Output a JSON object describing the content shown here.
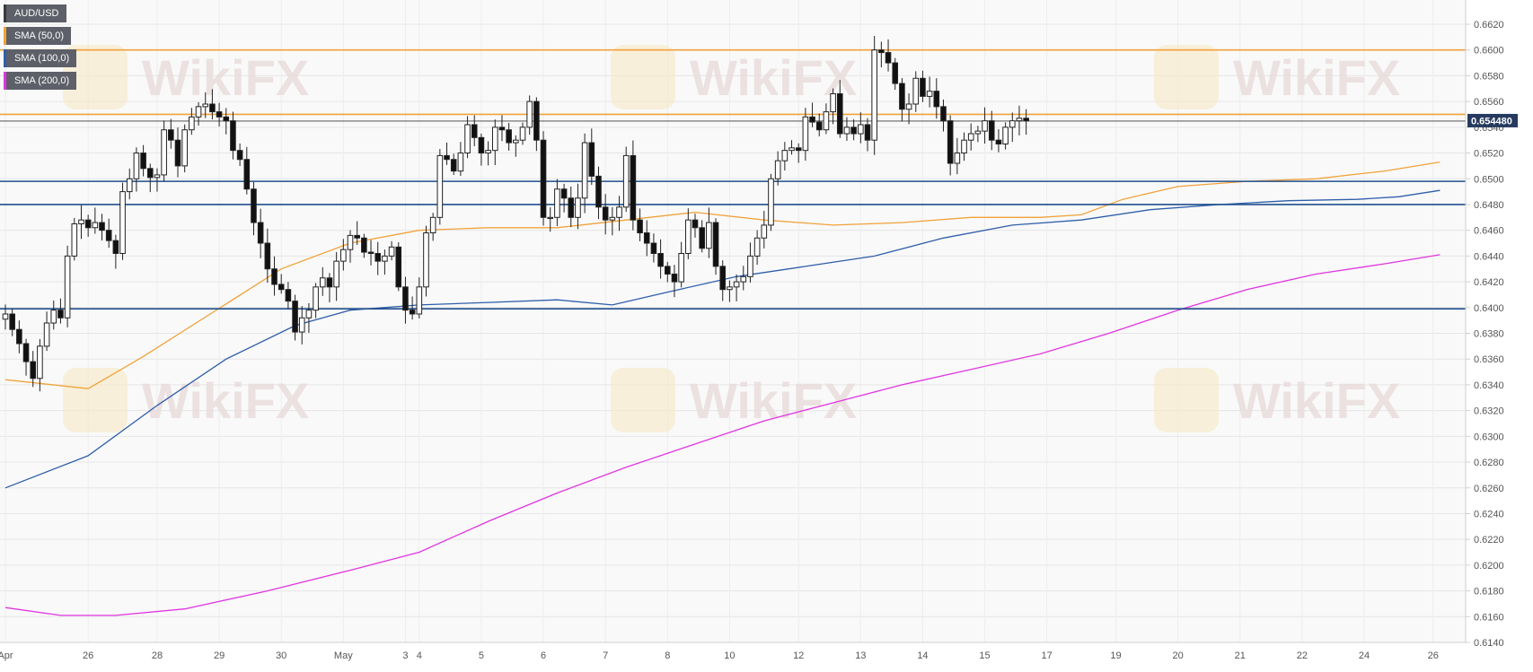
{
  "chart_data": {
    "type": "candlestick",
    "symbol": "AUD/USD",
    "price_badge": "0.654480",
    "ylim": [
      0.614,
      0.663
    ],
    "y_ticks": [
      "0.6140",
      "0.6160",
      "0.6180",
      "0.6200",
      "0.6220",
      "0.6240",
      "0.6260",
      "0.6280",
      "0.6300",
      "0.6320",
      "0.6340",
      "0.6360",
      "0.6380",
      "0.6400",
      "0.6420",
      "0.6440",
      "0.6460",
      "0.6480",
      "0.6500",
      "0.6520",
      "0.6540",
      "0.6560",
      "0.6580",
      "0.6600",
      "0.6620"
    ],
    "x_ticks": [
      {
        "label": "Apr",
        "bar": 0
      },
      {
        "label": "26",
        "bar": 12
      },
      {
        "label": "28",
        "bar": 22
      },
      {
        "label": "29",
        "bar": 31
      },
      {
        "label": "30",
        "bar": 40
      },
      {
        "label": "May",
        "bar": 49
      },
      {
        "label": "3",
        "bar": 58
      },
      {
        "label": "4",
        "bar": 60
      },
      {
        "label": "5",
        "bar": 69
      },
      {
        "label": "6",
        "bar": 78
      },
      {
        "label": "7",
        "bar": 87
      },
      {
        "label": "8",
        "bar": 96
      },
      {
        "label": "10",
        "bar": 105
      },
      {
        "label": "12",
        "bar": 115
      },
      {
        "label": "13",
        "bar": 124
      },
      {
        "label": "14",
        "bar": 133
      },
      {
        "label": "15",
        "bar": 142
      },
      {
        "label": "17",
        "bar": 151
      },
      {
        "label": "19",
        "bar": 161
      },
      {
        "label": "20",
        "bar": 170
      },
      {
        "label": "21",
        "bar": 179
      },
      {
        "label": "22",
        "bar": 188
      },
      {
        "label": "24",
        "bar": 197
      },
      {
        "label": "26",
        "bar": 207
      }
    ],
    "horizontal_levels": [
      {
        "value": 0.66,
        "color": "#f0a23a"
      },
      {
        "value": 0.655,
        "color": "#f0a23a"
      },
      {
        "value": 0.6498,
        "color": "#1f4e8c"
      },
      {
        "value": 0.648,
        "color": "#1f4e8c"
      },
      {
        "value": 0.6399,
        "color": "#1f4e8c"
      }
    ],
    "current_price_line": 0.65448,
    "series": [
      {
        "name": "AUD/USD",
        "ohlc_closes": [
          0.6395,
          0.6383,
          0.6372,
          0.6358,
          0.6345,
          0.637,
          0.6388,
          0.6398,
          0.6392,
          0.644,
          0.6465,
          0.6468,
          0.6462,
          0.6466,
          0.646,
          0.6452,
          0.6442,
          0.649,
          0.65,
          0.652,
          0.6508,
          0.6501,
          0.6503,
          0.6538,
          0.653,
          0.651,
          0.6538,
          0.6548,
          0.6556,
          0.6558,
          0.6552,
          0.6548,
          0.6545,
          0.6522,
          0.6515,
          0.6492,
          0.6466,
          0.645,
          0.643,
          0.6418,
          0.6414,
          0.6405,
          0.6381,
          0.6392,
          0.6398,
          0.6416,
          0.6423,
          0.6416,
          0.6436,
          0.6445,
          0.6456,
          0.6454,
          0.6443,
          0.6442,
          0.6436,
          0.644,
          0.6447,
          0.6416,
          0.6398,
          0.6395,
          0.6416,
          0.6458,
          0.647,
          0.6518,
          0.6515,
          0.6506,
          0.652,
          0.6542,
          0.6532,
          0.652,
          0.6522,
          0.654,
          0.6538,
          0.6528,
          0.653,
          0.654,
          0.656,
          0.653,
          0.647,
          0.647,
          0.6492,
          0.6485,
          0.647,
          0.6485,
          0.6528,
          0.6502,
          0.6478,
          0.6468,
          0.647,
          0.6478,
          0.6518,
          0.6468,
          0.6458,
          0.645,
          0.6442,
          0.6432,
          0.6426,
          0.642,
          0.6442,
          0.6468,
          0.6462,
          0.6446,
          0.6466,
          0.6432,
          0.6414,
          0.6416,
          0.642,
          0.6424,
          0.644,
          0.6454,
          0.6464,
          0.65,
          0.6514,
          0.6522,
          0.6524,
          0.6522,
          0.6548,
          0.6544,
          0.6538,
          0.6552,
          0.6566,
          0.6535,
          0.654,
          0.6535,
          0.6542,
          0.653,
          0.66,
          0.6598,
          0.659,
          0.6574,
          0.6554,
          0.6558,
          0.6578,
          0.6564,
          0.6568,
          0.6556,
          0.6545,
          0.6512,
          0.652,
          0.653,
          0.6535,
          0.6537,
          0.6545,
          0.653,
          0.6527,
          0.654,
          0.6545,
          0.6547,
          0.6545
        ]
      },
      {
        "name": "SMA (50,0)",
        "color": "#f0a23a",
        "points": [
          [
            0,
            0.6344
          ],
          [
            12,
            0.6337
          ],
          [
            20,
            0.6362
          ],
          [
            30,
            0.6396
          ],
          [
            40,
            0.643
          ],
          [
            50,
            0.645
          ],
          [
            60,
            0.646
          ],
          [
            70,
            0.6462
          ],
          [
            80,
            0.6462
          ],
          [
            90,
            0.6468
          ],
          [
            100,
            0.6474
          ],
          [
            110,
            0.6468
          ],
          [
            120,
            0.6464
          ],
          [
            130,
            0.6466
          ],
          [
            140,
            0.647
          ],
          [
            150,
            0.647
          ],
          [
            156,
            0.6472
          ],
          [
            162,
            0.6484
          ],
          [
            170,
            0.6494
          ],
          [
            180,
            0.6498
          ],
          [
            190,
            0.65
          ],
          [
            200,
            0.6506
          ],
          [
            208,
            0.6513
          ]
        ]
      },
      {
        "name": "SMA (100,0)",
        "color": "#2e5eaa",
        "points": [
          [
            0,
            0.626
          ],
          [
            12,
            0.6285
          ],
          [
            22,
            0.6324
          ],
          [
            32,
            0.636
          ],
          [
            42,
            0.6386
          ],
          [
            50,
            0.6398
          ],
          [
            60,
            0.6402
          ],
          [
            70,
            0.6404
          ],
          [
            80,
            0.6406
          ],
          [
            88,
            0.6402
          ],
          [
            96,
            0.6412
          ],
          [
            106,
            0.6424
          ],
          [
            116,
            0.6432
          ],
          [
            126,
            0.644
          ],
          [
            136,
            0.6454
          ],
          [
            146,
            0.6464
          ],
          [
            156,
            0.6468
          ],
          [
            166,
            0.6476
          ],
          [
            176,
            0.648
          ],
          [
            186,
            0.6483
          ],
          [
            196,
            0.6484
          ],
          [
            202,
            0.6486
          ],
          [
            208,
            0.6491
          ]
        ]
      },
      {
        "name": "SMA (200,0)",
        "color": "#e135e1",
        "points": [
          [
            0,
            0.6167
          ],
          [
            8,
            0.6161
          ],
          [
            16,
            0.6161
          ],
          [
            26,
            0.6166
          ],
          [
            38,
            0.618
          ],
          [
            50,
            0.6196
          ],
          [
            60,
            0.621
          ],
          [
            70,
            0.6234
          ],
          [
            80,
            0.6256
          ],
          [
            90,
            0.6276
          ],
          [
            100,
            0.6294
          ],
          [
            110,
            0.6312
          ],
          [
            120,
            0.6326
          ],
          [
            130,
            0.634
          ],
          [
            140,
            0.6352
          ],
          [
            150,
            0.6364
          ],
          [
            160,
            0.638
          ],
          [
            170,
            0.6398
          ],
          [
            180,
            0.6414
          ],
          [
            190,
            0.6426
          ],
          [
            200,
            0.6434
          ],
          [
            208,
            0.6441
          ]
        ]
      }
    ],
    "watermark": "WikiFX"
  },
  "legend": [
    {
      "label": "AUD/USD",
      "color": "#3a3a3a"
    },
    {
      "label": "SMA (50,0)",
      "color": "#f0a23a"
    },
    {
      "label": "SMA (100,0)",
      "color": "#2e5eaa"
    },
    {
      "label": "SMA (200,0)",
      "color": "#e135e1"
    }
  ]
}
